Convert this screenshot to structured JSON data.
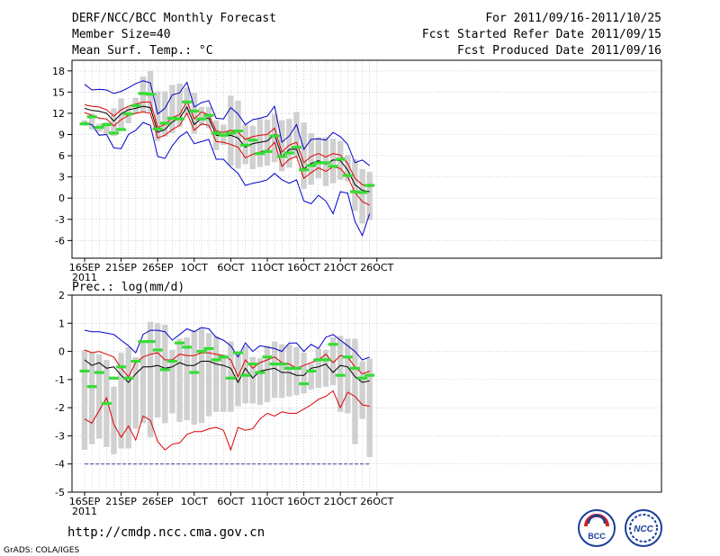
{
  "header": {
    "title": "DERF/NCC/BCC Monthly Forecast",
    "member_size": "Member Size=40",
    "variable": "Mean Surf. Temp.: °C",
    "period": "For 2011/09/16-2011/10/25",
    "refer_date": "Fcst Started Refer Date 2011/09/15",
    "produced_date": "Fcst Produced Date 2011/09/16"
  },
  "footer": {
    "url": "http://cmdp.ncc.cma.gov.cn",
    "credit": "GrADS: COLA/IGES",
    "logo_bcc": "BCC",
    "logo_ncc": "NCC"
  },
  "colors": {
    "bar": "#d0d0d0",
    "ensemble_max_min": "#0000cc",
    "percentile": "#dd0000",
    "median": "#000000",
    "member_mark": "#33dd33",
    "baseline": "#4040a0"
  },
  "chart_data": [
    {
      "type": "box-spread",
      "title": "Mean Surf. Temp.: °C",
      "x": "days from 2011-09-16 (0-39)",
      "x_tick_labels": [
        {
          "day": 0,
          "label": "16SEP",
          "sub": "2011"
        },
        {
          "day": 5,
          "label": "21SEP"
        },
        {
          "day": 10,
          "label": "26SEP"
        },
        {
          "day": 15,
          "label": "1OCT"
        },
        {
          "day": 20,
          "label": "6OCT"
        },
        {
          "day": 25,
          "label": "11OCT"
        },
        {
          "day": 30,
          "label": "16OCT"
        },
        {
          "day": 35,
          "label": "21OCT"
        },
        {
          "day": 40,
          "label": "26OCT"
        }
      ],
      "ylim": [
        -8.5,
        19.5
      ],
      "yticks": [
        -6,
        -3,
        0,
        3,
        6,
        9,
        12,
        15,
        18
      ],
      "series": [
        {
          "name": "max",
          "values": [
            16.1,
            15.3,
            15.4,
            15.3,
            14.8,
            15.1,
            15.6,
            16.2,
            16.6,
            16.3,
            11.9,
            12.7,
            14.6,
            14.9,
            16.4,
            12.9,
            13.5,
            13.8,
            11.3,
            11.2,
            12.8,
            11.9,
            10.4,
            11.1,
            11.3,
            11.6,
            13.0,
            7.9,
            8.8,
            10.4,
            6.9,
            8.3,
            8.4,
            8.2,
            9.3,
            8.7,
            7.6,
            5.0,
            5.4,
            4.6
          ]
        },
        {
          "name": "p90",
          "values": [
            13.2,
            13.0,
            12.9,
            12.5,
            11.6,
            12.5,
            13.0,
            13.3,
            13.6,
            13.6,
            10.0,
            10.4,
            11.4,
            11.8,
            13.7,
            11.2,
            12.2,
            11.8,
            9.5,
            9.3,
            9.6,
            9.3,
            8.3,
            8.7,
            8.9,
            9.0,
            9.9,
            6.5,
            7.5,
            7.9,
            5.0,
            5.9,
            6.3,
            5.8,
            6.3,
            6.1,
            4.9,
            2.8,
            1.9,
            1.6
          ]
        },
        {
          "name": "median",
          "values": [
            12.7,
            12.4,
            12.3,
            12.0,
            10.9,
            11.9,
            12.5,
            12.7,
            13.0,
            12.8,
            9.3,
            9.7,
            10.8,
            11.3,
            12.9,
            10.4,
            11.3,
            11.3,
            8.9,
            8.8,
            8.9,
            8.5,
            7.2,
            7.7,
            7.9,
            8.1,
            9.0,
            5.8,
            6.9,
            6.9,
            4.1,
            4.9,
            5.3,
            4.8,
            5.4,
            5.3,
            4.0,
            1.9,
            1.1,
            0.9
          ]
        },
        {
          "name": "p10",
          "values": [
            12.1,
            11.7,
            11.3,
            11.2,
            10.2,
            11.1,
            11.7,
            12.0,
            12.2,
            12.0,
            8.5,
            8.9,
            9.7,
            10.3,
            12.0,
            9.6,
            10.5,
            10.3,
            8.0,
            7.9,
            7.6,
            7.2,
            5.7,
            6.2,
            6.5,
            6.8,
            7.9,
            4.5,
            5.5,
            5.9,
            2.8,
            3.6,
            4.3,
            3.8,
            4.4,
            4.2,
            3.0,
            0.8,
            -0.5,
            -1.0
          ]
        },
        {
          "name": "min",
          "values": [
            10.7,
            10.4,
            8.9,
            9.0,
            7.1,
            7.0,
            9.0,
            9.6,
            10.7,
            10.3,
            5.9,
            5.6,
            7.4,
            8.7,
            9.4,
            7.7,
            8.0,
            8.3,
            5.5,
            5.5,
            4.4,
            3.5,
            1.8,
            2.1,
            2.3,
            2.6,
            3.5,
            2.6,
            2.1,
            2.6,
            -0.4,
            -0.8,
            0.4,
            -0.4,
            -2.2,
            0.9,
            0.7,
            -3.3,
            -5.3,
            -2.2
          ]
        },
        {
          "name": "bar_top",
          "values": [
            11.0,
            12.0,
            10.5,
            10.7,
            12.7,
            14.1,
            12.9,
            14.2,
            17.2,
            18.0,
            15.1,
            15.1,
            16.0,
            16.2,
            15.6,
            14.9,
            12.9,
            12.9,
            11.0,
            10.4,
            14.5,
            13.8,
            10.4,
            10.2,
            11.2,
            11.1,
            11.9,
            11.0,
            11.2,
            12.2,
            10.7,
            9.2,
            8.6,
            8.6,
            8.4,
            8.1,
            6.1,
            5.5,
            4.1,
            3.7
          ]
        },
        {
          "name": "bar_bottom",
          "values": [
            10.3,
            9.7,
            9.4,
            9.0,
            8.8,
            9.5,
            10.6,
            11.9,
            12.1,
            12.2,
            8.1,
            8.7,
            9.2,
            10.1,
            11.8,
            9.1,
            10.3,
            9.9,
            6.8,
            7.5,
            4.6,
            4.2,
            4.8,
            4.1,
            4.4,
            4.6,
            5.1,
            3.8,
            4.3,
            5.8,
            1.3,
            1.9,
            2.8,
            1.7,
            2.1,
            2.6,
            2.4,
            -1.8,
            -3.6,
            -3.1
          ]
        },
        {
          "name": "member",
          "values": [
            10.5,
            11.5,
            10.0,
            10.4,
            9.2,
            9.7,
            11.9,
            13.1,
            14.8,
            14.7,
            9.8,
            10.6,
            11.3,
            11.2,
            13.6,
            12.3,
            11.2,
            11.7,
            9.2,
            8.9,
            9.2,
            9.5,
            7.5,
            8.2,
            6.3,
            6.6,
            8.8,
            5.9,
            6.4,
            7.2,
            4.0,
            4.6,
            5.0,
            5.0,
            4.5,
            5.5,
            3.2,
            0.9,
            0.8,
            1.8
          ]
        }
      ]
    },
    {
      "type": "box-spread",
      "title": "Prec.: log(mm/d)",
      "x": "days from 2011-09-16 (0-39)",
      "x_tick_labels": [
        {
          "day": 0,
          "label": "16SEP",
          "sub": "2011"
        },
        {
          "day": 5,
          "label": "21SEP"
        },
        {
          "day": 10,
          "label": "26SEP"
        },
        {
          "day": 15,
          "label": "1OCT"
        },
        {
          "day": 20,
          "label": "6OCT"
        },
        {
          "day": 25,
          "label": "11OCT"
        },
        {
          "day": 30,
          "label": "16OCT"
        },
        {
          "day": 35,
          "label": "21OCT"
        },
        {
          "day": 40,
          "label": "26OCT"
        }
      ],
      "ylim": [
        -5,
        2
      ],
      "yticks": [
        -5,
        -4,
        -3,
        -2,
        -1,
        0,
        1,
        2
      ],
      "baseline": -4,
      "series": [
        {
          "name": "max",
          "values": [
            0.75,
            0.7,
            0.7,
            0.65,
            0.6,
            0.4,
            0.2,
            -0.05,
            0.6,
            0.75,
            0.75,
            0.7,
            0.4,
            0.6,
            0.8,
            0.7,
            0.85,
            0.8,
            0.5,
            0.4,
            0.2,
            -0.2,
            0.3,
            0.0,
            0.2,
            0.15,
            0.1,
            0.0,
            0.3,
            0.3,
            0.0,
            0.25,
            0.1,
            0.5,
            0.6,
            0.4,
            0.2,
            0.0,
            -0.3,
            -0.2
          ]
        },
        {
          "name": "p90",
          "values": [
            0.05,
            -0.05,
            0.0,
            -0.1,
            -0.2,
            -0.6,
            -0.9,
            -0.4,
            -0.2,
            -0.1,
            -0.05,
            -0.3,
            -0.3,
            -0.1,
            -0.15,
            -0.15,
            -0.05,
            -0.05,
            -0.1,
            -0.15,
            -0.3,
            -0.9,
            -0.3,
            -0.6,
            -0.4,
            -0.3,
            -0.2,
            -0.4,
            -0.45,
            -0.6,
            -0.5,
            -0.4,
            -0.3,
            -0.1,
            -0.4,
            -0.15,
            -0.2,
            -0.55,
            -0.8,
            -0.7
          ]
        },
        {
          "name": "median",
          "values": [
            -0.3,
            -0.5,
            -0.4,
            -0.6,
            -0.55,
            -0.85,
            -1.1,
            -0.8,
            -0.55,
            -0.55,
            -0.5,
            -0.6,
            -0.55,
            -0.4,
            -0.5,
            -0.5,
            -0.35,
            -0.35,
            -0.45,
            -0.5,
            -0.6,
            -1.1,
            -0.6,
            -0.95,
            -0.7,
            -0.65,
            -0.6,
            -0.75,
            -0.75,
            -0.85,
            -0.85,
            -0.6,
            -0.55,
            -0.45,
            -0.75,
            -0.5,
            -0.55,
            -0.9,
            -1.1,
            -1.05
          ]
        },
        {
          "name": "p10",
          "values": [
            -2.4,
            -2.55,
            -2.1,
            -1.65,
            -2.6,
            -3.05,
            -2.65,
            -3.15,
            -2.3,
            -2.45,
            -3.2,
            -3.5,
            -3.3,
            -3.25,
            -2.95,
            -2.85,
            -2.85,
            -2.75,
            -2.7,
            -2.8,
            -3.5,
            -2.7,
            -2.8,
            -2.75,
            -2.4,
            -2.2,
            -2.3,
            -2.15,
            -2.2,
            -2.2,
            -2.05,
            -1.9,
            -1.7,
            -1.6,
            -1.4,
            -2.0,
            -1.45,
            -1.6,
            -1.9,
            -1.95
          ]
        },
        {
          "name": "min",
          "values": [
            -4.0,
            -4.0,
            -4.0,
            -4.0,
            -4.0,
            -4.0,
            -4.0,
            -4.0,
            -4.0,
            -4.0,
            -4.0,
            -4.0,
            -4.0,
            -4.0,
            -4.0,
            -4.0,
            -4.0,
            -4.0,
            -4.0,
            -4.0,
            -4.0,
            -4.0,
            -4.0,
            -4.0,
            -4.0,
            -4.0,
            -4.0,
            -4.0,
            -4.0,
            -4.0,
            -4.0,
            -4.0,
            -4.0,
            -4.0,
            -4.0,
            -4.0,
            -4.0,
            -4.0,
            -4.0,
            -4.0
          ]
        },
        {
          "name": "bar_top",
          "values": [
            0.05,
            -0.05,
            -0.1,
            -0.3,
            -1.25,
            -0.05,
            0.15,
            -0.2,
            0.3,
            1.05,
            1.0,
            0.95,
            0.05,
            0.45,
            0.5,
            0.75,
            0.85,
            0.65,
            0.55,
            -0.1,
            0.35,
            -0.1,
            0.2,
            -0.2,
            -0.25,
            0.2,
            0.35,
            0.25,
            0.25,
            0.15,
            -0.05,
            -0.45,
            0.1,
            0.05,
            0.5,
            0.55,
            0.45,
            0.45,
            -0.35,
            -0.25
          ]
        },
        {
          "name": "bar_bottom",
          "values": [
            -3.5,
            -3.3,
            -3.1,
            -3.4,
            -3.65,
            -3.45,
            -3.45,
            -2.75,
            -2.55,
            -3.05,
            -2.35,
            -2.55,
            -2.2,
            -2.5,
            -2.45,
            -2.6,
            -2.55,
            -2.3,
            -2.15,
            -2.15,
            -2.15,
            -1.95,
            -1.85,
            -1.85,
            -1.9,
            -1.8,
            -1.65,
            -1.65,
            -1.6,
            -1.55,
            -1.5,
            -1.35,
            -1.3,
            -1.25,
            -1.2,
            -2.15,
            -2.2,
            -3.3,
            -2.4,
            -3.75
          ]
        },
        {
          "name": "member",
          "values": [
            -0.7,
            -1.25,
            -0.75,
            -1.85,
            -0.95,
            -0.55,
            -0.95,
            -0.35,
            0.35,
            0.35,
            0.05,
            -0.65,
            -0.35,
            0.3,
            0.15,
            -0.75,
            0.0,
            0.1,
            -0.3,
            -0.2,
            -0.95,
            -0.05,
            -0.85,
            -0.45,
            -0.75,
            -0.2,
            -0.45,
            -0.45,
            -0.6,
            -0.6,
            -1.15,
            -0.7,
            -0.3,
            -0.3,
            0.25,
            -0.85,
            -0.2,
            -0.6,
            -0.95,
            -0.85
          ]
        }
      ]
    }
  ]
}
